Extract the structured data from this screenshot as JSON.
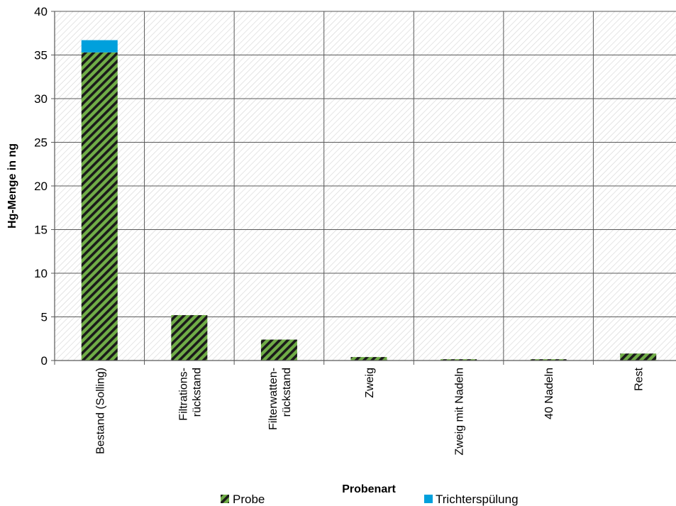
{
  "chart_data": {
    "type": "bar",
    "stacked": true,
    "categories": [
      [
        "Bestand (Solling)"
      ],
      [
        "Filtrations-",
        "rückstand"
      ],
      [
        "Filterwatten-",
        "rückstand"
      ],
      [
        "Zweig"
      ],
      [
        "Zweig mit Nadeln"
      ],
      [
        "40 Nadeln"
      ],
      [
        "Rest"
      ]
    ],
    "series": [
      {
        "name": "Probe",
        "values": [
          35.3,
          5.2,
          2.4,
          0.4,
          0.15,
          0.15,
          0.8
        ],
        "color": "#70ad47",
        "pattern": "diagonal-stripes"
      },
      {
        "name": "Trichterspülung",
        "values": [
          1.4,
          0,
          0,
          0,
          0,
          0,
          0
        ],
        "color": "#00a0dc"
      }
    ],
    "xlabel": "Probenart",
    "ylabel": "Hg-Menge in ng",
    "ylim": [
      0,
      40
    ],
    "yticks": [
      0,
      5,
      10,
      15,
      20,
      25,
      30,
      35,
      40
    ],
    "grid": true,
    "legend": "bottom"
  }
}
